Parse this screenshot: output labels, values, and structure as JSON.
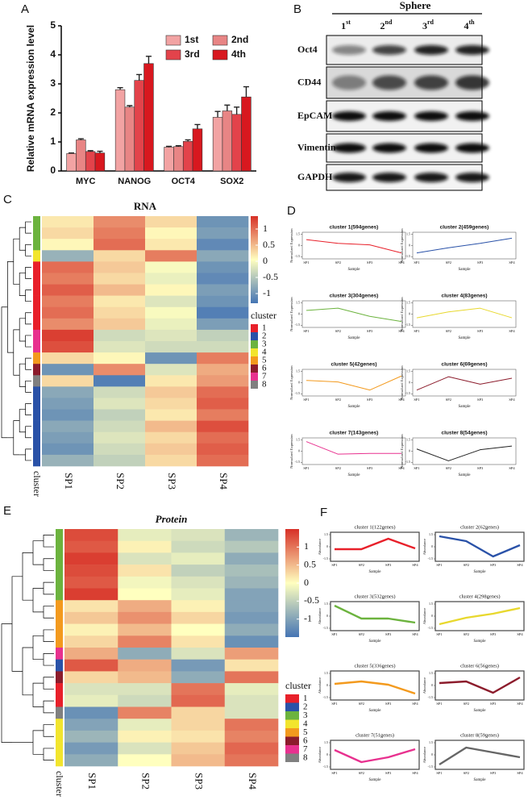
{
  "panels": [
    "A",
    "B",
    "C",
    "D",
    "E",
    "F"
  ],
  "blot": {
    "title": "Sphere",
    "lanes": [
      [
        "1",
        "st"
      ],
      [
        "2",
        "nd"
      ],
      [
        "3",
        "rd"
      ],
      [
        "4",
        "th"
      ]
    ],
    "proteins": [
      "Oct4",
      "CD44",
      "EpCAM",
      "Vimentin",
      "GAPDH"
    ]
  },
  "chart_data": [
    {
      "type": "bar",
      "ylabel": "Relative mRNA expression level",
      "categories": [
        "MYC",
        "NANOG",
        "OCT4",
        "SOX2"
      ],
      "series": [
        {
          "name": "1st",
          "color": "#f2a3a3",
          "values": [
            0.6,
            2.8,
            0.82,
            1.85
          ],
          "errors": [
            0.02,
            0.07,
            0.03,
            0.2
          ]
        },
        {
          "name": "2nd",
          "color": "#e88585",
          "values": [
            1.07,
            2.2,
            0.84,
            2.07
          ],
          "errors": [
            0.04,
            0.05,
            0.03,
            0.2
          ]
        },
        {
          "name": "3rd",
          "color": "#e3434b",
          "values": [
            0.67,
            3.12,
            1.02,
            1.95
          ],
          "errors": [
            0.03,
            0.2,
            0.05,
            0.25
          ]
        },
        {
          "name": "4th",
          "color": "#d8181f",
          "values": [
            0.62,
            3.7,
            1.45,
            2.55
          ],
          "errors": [
            0.06,
            0.25,
            0.15,
            0.35
          ]
        }
      ],
      "ylim": [
        0,
        5
      ],
      "yticks": [
        0,
        1,
        2,
        3,
        4,
        5
      ],
      "legend": "upper right"
    },
    {
      "type": "heatmap",
      "title": "RNA",
      "columns": [
        "SP1",
        "SP2",
        "SP3",
        "SP4"
      ],
      "side_label": "cluster",
      "rows": [
        {
          "cluster": 3,
          "values": [
            0.2,
            0.8,
            0.3,
            -1.0
          ]
        },
        {
          "cluster": 3,
          "values": [
            0.3,
            0.9,
            0.1,
            -0.9
          ]
        },
        {
          "cluster": 3,
          "values": [
            0.1,
            1.0,
            0.2,
            -1.1
          ]
        },
        {
          "cluster": 4,
          "values": [
            -0.7,
            0.3,
            0.9,
            -0.8
          ]
        },
        {
          "cluster": 1,
          "values": [
            1.0,
            0.4,
            0.0,
            -1.0
          ]
        },
        {
          "cluster": 1,
          "values": [
            0.9,
            0.3,
            -0.1,
            -1.1
          ]
        },
        {
          "cluster": 1,
          "values": [
            1.1,
            0.5,
            0.1,
            -0.9
          ]
        },
        {
          "cluster": 1,
          "values": [
            0.9,
            0.2,
            -0.2,
            -1.0
          ]
        },
        {
          "cluster": 1,
          "values": [
            1.0,
            0.3,
            0.0,
            -1.2
          ]
        },
        {
          "cluster": 1,
          "values": [
            0.8,
            0.4,
            -0.1,
            -0.9
          ]
        },
        {
          "cluster": 7,
          "values": [
            1.3,
            -0.3,
            -0.2,
            -0.4
          ]
        },
        {
          "cluster": 7,
          "values": [
            1.2,
            -0.2,
            -0.3,
            -0.3
          ]
        },
        {
          "cluster": 5,
          "values": [
            0.3,
            0.1,
            -1.0,
            0.9
          ]
        },
        {
          "cluster": 6,
          "values": [
            -1.0,
            0.8,
            -0.2,
            0.6
          ]
        },
        {
          "cluster": 8,
          "values": [
            0.3,
            -1.2,
            0.2,
            0.7
          ]
        },
        {
          "cluster": 2,
          "values": [
            -0.8,
            -0.3,
            0.4,
            1.0
          ]
        },
        {
          "cluster": 2,
          "values": [
            -0.9,
            -0.2,
            0.3,
            1.1
          ]
        },
        {
          "cluster": 2,
          "values": [
            -1.0,
            -0.4,
            0.2,
            0.9
          ]
        },
        {
          "cluster": 2,
          "values": [
            -0.8,
            -0.3,
            0.5,
            1.2
          ]
        },
        {
          "cluster": 2,
          "values": [
            -0.9,
            -0.2,
            0.3,
            1.0
          ]
        },
        {
          "cluster": 2,
          "values": [
            -1.0,
            -0.3,
            0.4,
            1.1
          ]
        },
        {
          "cluster": 2,
          "values": [
            -0.7,
            -0.4,
            0.3,
            1.0
          ]
        }
      ],
      "zlim": [
        -1.3,
        1.4
      ],
      "colorbar_ticks": [
        1,
        0.5,
        0,
        -0.5,
        -1
      ],
      "colors": [
        "#4575b4",
        "#ffffbf",
        "#d73027"
      ],
      "legend_title": "cluster",
      "clusters": [
        {
          "name": 1,
          "color": "#e8202a"
        },
        {
          "name": 2,
          "color": "#2a52a8"
        },
        {
          "name": 3,
          "color": "#6cb33e"
        },
        {
          "name": 4,
          "color": "#f2e52e"
        },
        {
          "name": 5,
          "color": "#f39a1e"
        },
        {
          "name": 6,
          "color": "#8c1c2c"
        },
        {
          "name": 7,
          "color": "#e8318f"
        },
        {
          "name": 8,
          "color": "#808080"
        }
      ]
    },
    {
      "type": "line",
      "x": [
        "SP1",
        "SP2",
        "SP3",
        "SP4"
      ],
      "xlabel": "Sample",
      "ylabel": "Normalized Expression",
      "ylim": [
        -1.8,
        1.8
      ],
      "yticks": [
        -1.5,
        0,
        1.5
      ],
      "series": [
        {
          "name": "cluster 1(594genes)",
          "color": "#e8202a",
          "values": [
            0.8,
            0.3,
            0.1,
            -1.0
          ]
        },
        {
          "name": "cluster 2(459genes)",
          "color": "#2a52a8",
          "values": [
            -1.0,
            -0.3,
            0.3,
            1.0
          ]
        },
        {
          "name": "cluster 3(304genes)",
          "color": "#6cb33e",
          "values": [
            0.5,
            0.8,
            -0.3,
            -1.0
          ]
        },
        {
          "name": "cluster 4(83genes)",
          "color": "#e8d82e",
          "values": [
            -0.5,
            0.3,
            0.8,
            -0.5
          ]
        },
        {
          "name": "cluster 5(42genes)",
          "color": "#f39a1e",
          "values": [
            0.3,
            0.1,
            -1.0,
            0.9
          ]
        },
        {
          "name": "cluster 6(69genes)",
          "color": "#8c1c2c",
          "values": [
            -1.0,
            0.8,
            -0.2,
            0.6
          ]
        },
        {
          "name": "cluster 7(143genes)",
          "color": "#e8318f",
          "values": [
            1.3,
            -0.4,
            -0.3,
            -0.3
          ]
        },
        {
          "name": "cluster 8(54genes)",
          "color": "#222222",
          "values": [
            0.3,
            -1.3,
            0.2,
            0.7
          ]
        }
      ]
    },
    {
      "type": "heatmap",
      "title": "Protein",
      "columns": [
        "SP1",
        "SP2",
        "SP3",
        "SP4"
      ],
      "side_label": "cluster",
      "rows": [
        {
          "cluster": 3,
          "values": [
            1.3,
            -0.2,
            -0.3,
            -0.8
          ]
        },
        {
          "cluster": 3,
          "values": [
            1.2,
            0.1,
            -0.4,
            -0.6
          ]
        },
        {
          "cluster": 3,
          "values": [
            1.4,
            -0.3,
            -0.2,
            -0.9
          ]
        },
        {
          "cluster": 3,
          "values": [
            1.3,
            0.2,
            -0.5,
            -0.7
          ]
        },
        {
          "cluster": 3,
          "values": [
            1.2,
            -0.1,
            -0.3,
            -0.8
          ]
        },
        {
          "cluster": 3,
          "values": [
            1.4,
            0.0,
            -0.2,
            -1.0
          ]
        },
        {
          "cluster": 5,
          "values": [
            0.2,
            0.6,
            0.1,
            -1.0
          ]
        },
        {
          "cluster": 5,
          "values": [
            0.4,
            0.8,
            0.3,
            -1.1
          ]
        },
        {
          "cluster": 5,
          "values": [
            0.1,
            0.5,
            0.0,
            -0.9
          ]
        },
        {
          "cluster": 5,
          "values": [
            0.3,
            0.9,
            0.2,
            -1.2
          ]
        },
        {
          "cluster": 7,
          "values": [
            0.6,
            -0.9,
            -0.3,
            0.7
          ]
        },
        {
          "cluster": 2,
          "values": [
            1.2,
            0.6,
            -1.1,
            0.2
          ]
        },
        {
          "cluster": 6,
          "values": [
            0.3,
            0.5,
            -0.9,
            1.0
          ]
        },
        {
          "cluster": 1,
          "values": [
            -0.3,
            -0.3,
            1.0,
            -0.2
          ]
        },
        {
          "cluster": 1,
          "values": [
            -0.2,
            -0.4,
            1.1,
            -0.3
          ]
        },
        {
          "cluster": 8,
          "values": [
            -1.2,
            0.9,
            0.3,
            -0.3
          ]
        },
        {
          "cluster": 4,
          "values": [
            -1.0,
            -0.2,
            0.3,
            1.0
          ]
        },
        {
          "cluster": 4,
          "values": [
            -0.8,
            0.1,
            0.2,
            0.9
          ]
        },
        {
          "cluster": 4,
          "values": [
            -1.1,
            -0.3,
            0.4,
            1.1
          ]
        },
        {
          "cluster": 4,
          "values": [
            -0.9,
            0.0,
            0.5,
            1.0
          ]
        }
      ],
      "zlim": [
        -1.5,
        1.5
      ],
      "colorbar_ticks": [
        1,
        0.5,
        0,
        -0.5,
        -1
      ],
      "colors": [
        "#4575b4",
        "#ffffbf",
        "#d73027"
      ],
      "legend_title": "cluster",
      "clusters": [
        {
          "name": 1,
          "color": "#e8202a"
        },
        {
          "name": 2,
          "color": "#2a52a8"
        },
        {
          "name": 3,
          "color": "#6cb33e"
        },
        {
          "name": 4,
          "color": "#f2e52e"
        },
        {
          "name": 5,
          "color": "#f39a1e"
        },
        {
          "name": 6,
          "color": "#8c1c2c"
        },
        {
          "name": 7,
          "color": "#e8318f"
        },
        {
          "name": 8,
          "color": "#808080"
        }
      ]
    },
    {
      "type": "line",
      "x": [
        "SP1",
        "SP2",
        "SP3",
        "SP4"
      ],
      "xlabel": "Sample",
      "ylabel": "Abundance",
      "ylim": [
        -1.8,
        1.8
      ],
      "yticks": [
        -1.5,
        0,
        1.5
      ],
      "series": [
        {
          "name": "cluster 1(122genes)",
          "color": "#e8202a",
          "values": [
            -0.3,
            -0.3,
            1.0,
            -0.2
          ]
        },
        {
          "name": "cluster 2(62genes)",
          "color": "#2a52a8",
          "values": [
            1.3,
            0.7,
            -1.2,
            0.2
          ]
        },
        {
          "name": "cluster 3(532genes)",
          "color": "#6cb33e",
          "values": [
            1.3,
            -0.3,
            -0.3,
            -0.8
          ]
        },
        {
          "name": "cluster 4(298genes)",
          "color": "#e8d82e",
          "values": [
            -1.0,
            -0.2,
            0.3,
            1.0
          ]
        },
        {
          "name": "cluster 5(336genes)",
          "color": "#f39a1e",
          "values": [
            0.2,
            0.5,
            0.1,
            -1.0
          ]
        },
        {
          "name": "cluster 6(56genes)",
          "color": "#8c1c2c",
          "values": [
            0.3,
            0.5,
            -0.9,
            1.0
          ]
        },
        {
          "name": "cluster 7(51genes)",
          "color": "#e8318f",
          "values": [
            0.6,
            -0.9,
            -0.3,
            0.7
          ]
        },
        {
          "name": "cluster 8(59genes)",
          "color": "#666666",
          "values": [
            -1.2,
            0.9,
            0.3,
            -0.3
          ]
        }
      ]
    }
  ]
}
